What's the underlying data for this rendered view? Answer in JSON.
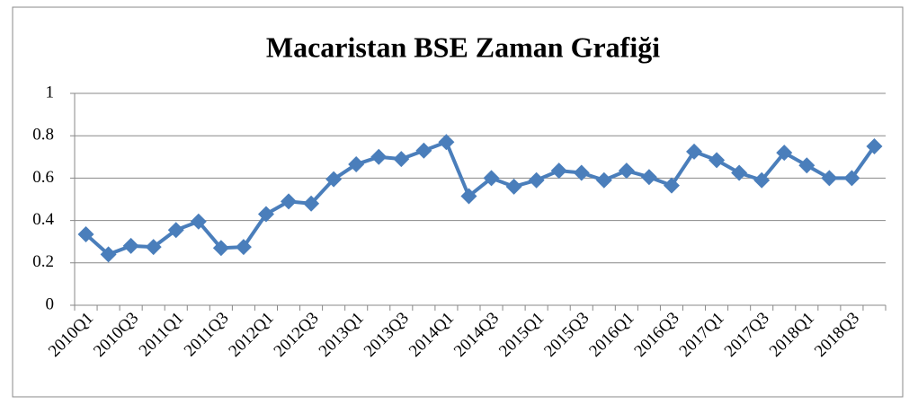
{
  "chart_data": {
    "type": "line",
    "title": "Macaristan BSE Zaman Grafiği",
    "categories": [
      "2010Q1",
      null,
      "2010Q3",
      null,
      "2011Q1",
      null,
      "2011Q3",
      null,
      "2012Q1",
      null,
      "2012Q3",
      null,
      "2013Q1",
      null,
      "2013Q3",
      null,
      "2014Q1",
      null,
      "2014Q3",
      null,
      "2015Q1",
      null,
      "2015Q3",
      null,
      "2016Q1",
      null,
      "2016Q3",
      null,
      "2017Q1",
      null,
      "2017Q3",
      null,
      "2018Q1",
      null,
      "2018Q3",
      null
    ],
    "values": [
      0.335,
      0.24,
      0.28,
      0.275,
      0.355,
      0.395,
      0.27,
      0.275,
      0.43,
      0.49,
      0.48,
      0.595,
      0.665,
      0.7,
      0.69,
      0.73,
      0.77,
      0.515,
      0.6,
      0.56,
      0.59,
      0.635,
      0.625,
      0.59,
      0.635,
      0.605,
      0.565,
      0.725,
      0.685,
      0.625,
      0.59,
      0.72,
      0.66,
      0.6,
      0.6,
      0.75
    ],
    "color": "#4a7ebb",
    "ylim": [
      0,
      1
    ],
    "yticks": [
      0,
      0.2,
      0.4,
      0.6,
      0.8,
      1
    ],
    "grid": true
  }
}
